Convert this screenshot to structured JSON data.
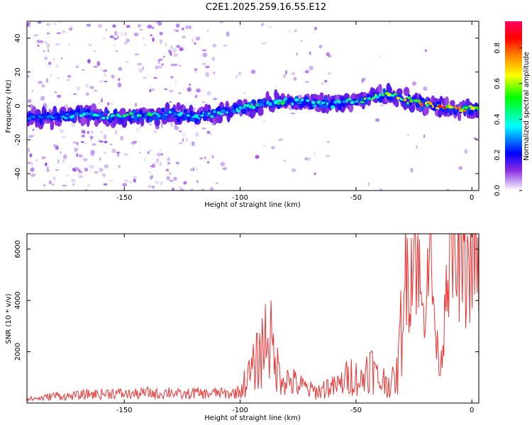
{
  "title": "C2E1.2025.259.16.55.E12",
  "chart_data": [
    {
      "type": "heatmap",
      "name": "spectrogram",
      "xlabel": "Height of straight line (km)",
      "ylabel": "Frequency (Hz)",
      "xlim": [
        -192,
        3
      ],
      "ylim": [
        -50,
        50
      ],
      "xticks": [
        -150,
        -100,
        -50,
        0
      ],
      "xtick_labels": [
        "-150",
        "-100",
        "-50",
        "0"
      ],
      "yticks": [
        -40,
        -20,
        0,
        20,
        40
      ],
      "ytick_labels": [
        "-40",
        "-20",
        "0",
        "20",
        "40"
      ],
      "colorbar": {
        "label": "Normalized spectral amplitude",
        "range": [
          0,
          0.95
        ],
        "ticks": [
          0,
          0.2,
          0.4,
          0.6,
          0.8
        ],
        "tick_labels": [
          "0.0",
          "0.2",
          "0.4",
          "0.6",
          "0.8"
        ],
        "colors": [
          "#ffffff",
          "#c9a8f0",
          "#8a2be2",
          "#0000ff",
          "#00ffff",
          "#00ff00",
          "#ffff00",
          "#ff8000",
          "#ff0000",
          "#ff0060"
        ]
      },
      "ridge": {
        "x": [
          -192,
          -180,
          -170,
          -160,
          -150,
          -140,
          -130,
          -120,
          -110,
          -100,
          -90,
          -80,
          -70,
          -60,
          -50,
          -40,
          -35,
          -30,
          -20,
          -10,
          0
        ],
        "frequency": [
          -6,
          -7,
          -5,
          -6,
          -6,
          -6,
          -5,
          -6,
          -4,
          -2,
          1,
          3,
          2,
          1,
          3,
          6,
          7,
          4,
          1,
          -1,
          -2
        ],
        "amplitude": [
          0.3,
          0.35,
          0.4,
          0.45,
          0.5,
          0.5,
          0.45,
          0.4,
          0.5,
          0.45,
          0.5,
          0.5,
          0.45,
          0.45,
          0.55,
          0.65,
          0.7,
          0.75,
          0.85,
          0.9,
          0.8
        ]
      }
    },
    {
      "type": "line",
      "name": "snr",
      "xlabel": "Height of straight line (km)",
      "ylabel": "SNR (10 * v/v)",
      "xlim": [
        -192,
        3
      ],
      "ylim": [
        0,
        6600
      ],
      "xticks": [
        -150,
        -100,
        -50,
        0
      ],
      "xtick_labels": [
        "-150",
        "-100",
        "-50",
        "0"
      ],
      "yticks": [
        2000,
        4000,
        6000
      ],
      "ytick_labels": [
        "2000",
        "4000",
        "6000"
      ],
      "color": "#ee3333",
      "x": [
        -192,
        -185,
        -180,
        -175,
        -170,
        -165,
        -160,
        -155,
        -150,
        -145,
        -140,
        -135,
        -130,
        -125,
        -120,
        -115,
        -110,
        -105,
        -100,
        -98,
        -95,
        -92,
        -90,
        -88,
        -85,
        -82,
        -80,
        -77,
        -75,
        -72,
        -70,
        -67,
        -65,
        -62,
        -60,
        -57,
        -55,
        -52,
        -50,
        -47,
        -45,
        -42,
        -40,
        -37,
        -35,
        -32,
        -30,
        -28,
        -27,
        -25,
        -23,
        -21,
        -19,
        -17,
        -15,
        -13,
        -11,
        -9,
        -7,
        -5,
        -3,
        -1,
        0,
        1,
        2,
        3
      ],
      "values": [
        150,
        200,
        300,
        250,
        300,
        350,
        350,
        400,
        350,
        350,
        400,
        350,
        450,
        300,
        400,
        350,
        400,
        350,
        450,
        800,
        1200,
        1800,
        2200,
        3000,
        1500,
        1100,
        900,
        800,
        700,
        600,
        500,
        450,
        500,
        650,
        600,
        700,
        900,
        1100,
        1000,
        800,
        1600,
        1200,
        800,
        900,
        700,
        1100,
        3600,
        5500,
        4800,
        6300,
        5200,
        3000,
        6500,
        4500,
        2000,
        1500,
        5500,
        6200,
        5000,
        5800,
        4800,
        5500,
        5200,
        6300,
        5000,
        4500
      ]
    }
  ]
}
